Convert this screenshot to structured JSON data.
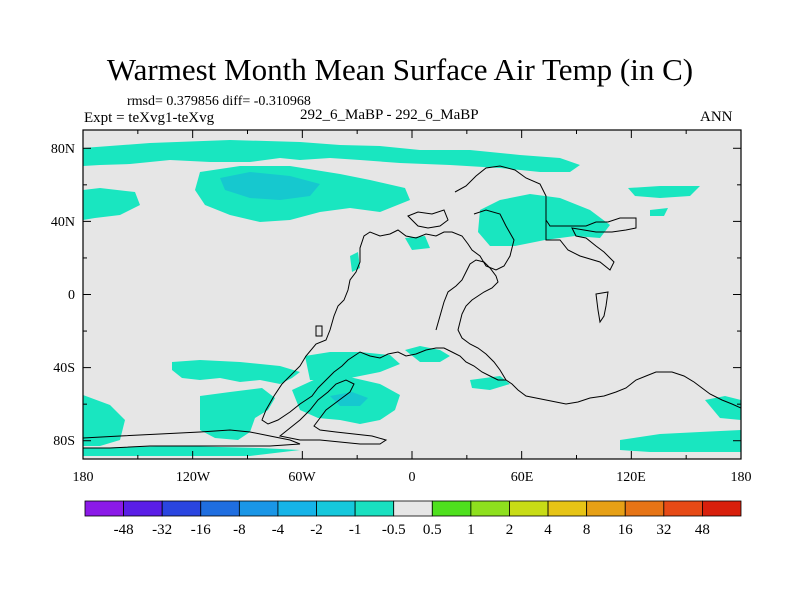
{
  "title": "Warmest Month Mean Surface Air Temp (in C)",
  "stats": "rmsd= 0.379856 diff= -0.310968",
  "expt": "Expt = teXvg1-teXvg",
  "subtitle": "292_6_MaBP - 292_6_MaBP",
  "season": "ANN",
  "map": {
    "background_color": "#e6e6e6",
    "anomaly_color": "#19e6c0",
    "strong_anomaly_color": "#16c8cf",
    "coastline_color": "#000000",
    "lon_ticks": [
      "180",
      "120W",
      "60W",
      "0",
      "60E",
      "120E",
      "180"
    ],
    "lat_ticks": [
      "80N",
      "40N",
      "0",
      "40S",
      "80S"
    ]
  },
  "colorbar": {
    "labels": [
      "-48",
      "-32",
      "-16",
      "-8",
      "-4",
      "-2",
      "-1",
      "-0.5",
      "0.5",
      "1",
      "2",
      "4",
      "8",
      "16",
      "32",
      "48"
    ],
    "colors": [
      "#8b1ae8",
      "#5a1ee6",
      "#2a45e0",
      "#1f6ee0",
      "#1a96e6",
      "#16b4e8",
      "#16c8dc",
      "#19e0c0",
      "#e6e6e6",
      "#4ee01e",
      "#8ee01e",
      "#c8dc16",
      "#e6c416",
      "#e6a016",
      "#e67416",
      "#e64a16",
      "#d8200c"
    ]
  }
}
